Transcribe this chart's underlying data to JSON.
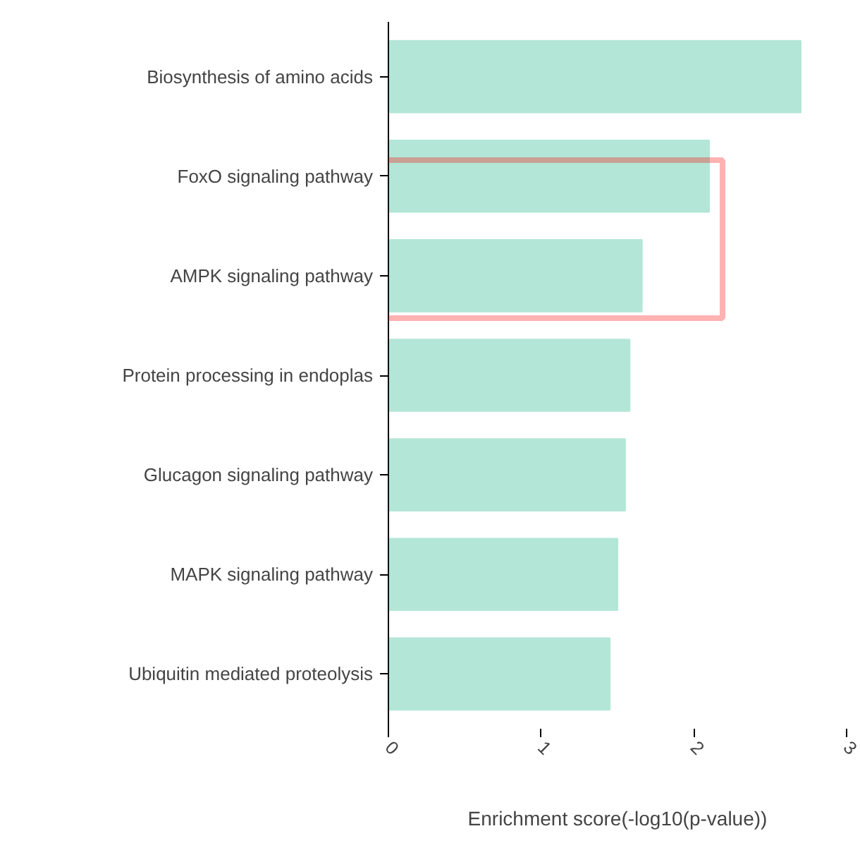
{
  "chart_data": {
    "type": "bar",
    "orientation": "horizontal",
    "xlabel": "Enrichment score(-log10(p-value))",
    "categories": [
      "Biosynthesis of amino acids",
      "FoxO signaling pathway",
      "AMPK signaling pathway",
      "Protein processing in endoplas",
      "Glucagon signaling pathway",
      "MAPK signaling pathway",
      "Ubiquitin mediated proteolysis"
    ],
    "values": [
      2.7,
      2.1,
      1.66,
      1.58,
      1.55,
      1.5,
      1.45
    ],
    "color": "#b3e6d6",
    "xlim": [
      0,
      3
    ],
    "xticks": [
      0,
      1,
      2,
      3
    ],
    "grid": false
  }
}
